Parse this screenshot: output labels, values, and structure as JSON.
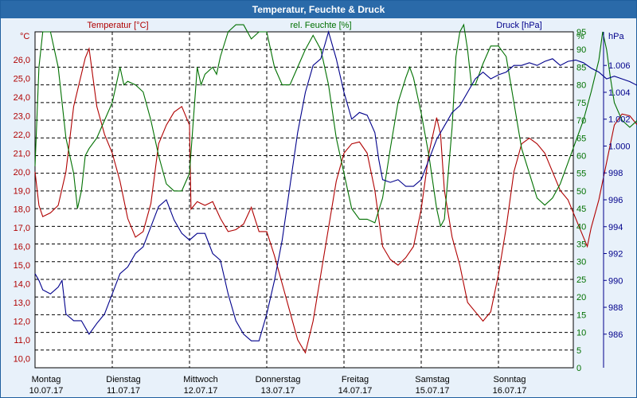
{
  "window": {
    "title": "Temperatur, Feuchte & Druck"
  },
  "chart_data": {
    "type": "line",
    "title": "Temperatur, Feuchte & Druck",
    "x_categories": [
      {
        "day": "Montag",
        "date": "10.07.17"
      },
      {
        "day": "Dienstag",
        "date": "11.07.17"
      },
      {
        "day": "Mittwoch",
        "date": "12.07.17"
      },
      {
        "day": "Donnerstag",
        "date": "13.07.17"
      },
      {
        "day": "Freitag",
        "date": "14.07.17"
      },
      {
        "day": "Samstag",
        "date": "15.07.17"
      },
      {
        "day": "Sonntag",
        "date": "16.07.17"
      }
    ],
    "x_range_days": [
      0,
      7
    ],
    "grid": true,
    "axes": {
      "temperature": {
        "label": "Temperatur [°C]",
        "unit": "°C",
        "range": [
          9.5,
          27.5
        ],
        "ticks": [
          "10,0",
          "11,0",
          "12,0",
          "13,0",
          "14,0",
          "15,0",
          "16,0",
          "17,0",
          "18,0",
          "19,0",
          "20,0",
          "21,0",
          "22,0",
          "23,0",
          "24,0",
          "25,0",
          "26,0"
        ],
        "color": "#b00000"
      },
      "humidity": {
        "label": "rel. Feuchte [%]",
        "unit": "%",
        "range": [
          0,
          95
        ],
        "ticks": [
          "0",
          "5",
          "10",
          "15",
          "20",
          "25",
          "30",
          "35",
          "40",
          "45",
          "50",
          "55",
          "60",
          "65",
          "70",
          "75",
          "80",
          "85",
          "90",
          "95"
        ],
        "color": "#007000"
      },
      "pressure": {
        "label": "Druck [hPa]",
        "unit": "hPa",
        "range": [
          983.5,
          1008.5
        ],
        "ticks": [
          "986",
          "988",
          "990",
          "992",
          "994",
          "996",
          "998",
          "1.000",
          "1.002",
          "1.004",
          "1.006"
        ],
        "color": "#00008b"
      }
    },
    "series": [
      {
        "name": "Temperatur [°C]",
        "axis": "temperature",
        "color": "#b00000",
        "points": [
          [
            0,
            20.0
          ],
          [
            0.05,
            18.2
          ],
          [
            0.1,
            17.6
          ],
          [
            0.2,
            17.8
          ],
          [
            0.3,
            18.2
          ],
          [
            0.4,
            20.0
          ],
          [
            0.5,
            23.5
          ],
          [
            0.65,
            26.1
          ],
          [
            0.7,
            26.6
          ],
          [
            0.8,
            23.5
          ],
          [
            0.9,
            22.0
          ],
          [
            1.0,
            21.0
          ],
          [
            1.1,
            19.5
          ],
          [
            1.2,
            17.5
          ],
          [
            1.3,
            16.5
          ],
          [
            1.4,
            16.8
          ],
          [
            1.5,
            18.3
          ],
          [
            1.6,
            21.5
          ],
          [
            1.7,
            22.5
          ],
          [
            1.8,
            23.2
          ],
          [
            1.9,
            23.5
          ],
          [
            2.0,
            22.5
          ],
          [
            2.02,
            18.0
          ],
          [
            2.1,
            18.4
          ],
          [
            2.2,
            18.2
          ],
          [
            2.3,
            18.4
          ],
          [
            2.4,
            17.5
          ],
          [
            2.5,
            16.8
          ],
          [
            2.6,
            16.9
          ],
          [
            2.7,
            17.2
          ],
          [
            2.8,
            18.1
          ],
          [
            2.9,
            16.8
          ],
          [
            3.0,
            16.8
          ],
          [
            3.1,
            15.5
          ],
          [
            3.2,
            14.0
          ],
          [
            3.3,
            12.5
          ],
          [
            3.4,
            11.0
          ],
          [
            3.5,
            10.3
          ],
          [
            3.6,
            12.0
          ],
          [
            3.7,
            14.5
          ],
          [
            3.8,
            17.0
          ],
          [
            3.9,
            19.5
          ],
          [
            4.0,
            21.0
          ],
          [
            4.1,
            21.5
          ],
          [
            4.2,
            21.6
          ],
          [
            4.3,
            21.0
          ],
          [
            4.4,
            19.0
          ],
          [
            4.5,
            16.0
          ],
          [
            4.6,
            15.3
          ],
          [
            4.7,
            15.0
          ],
          [
            4.8,
            15.4
          ],
          [
            4.9,
            16.0
          ],
          [
            5.0,
            18.0
          ],
          [
            5.1,
            21.0
          ],
          [
            5.2,
            22.9
          ],
          [
            5.25,
            22.0
          ],
          [
            5.3,
            19.0
          ],
          [
            5.4,
            16.5
          ],
          [
            5.5,
            15.0
          ],
          [
            5.6,
            13.0
          ],
          [
            5.7,
            12.5
          ],
          [
            5.8,
            12.0
          ],
          [
            5.9,
            12.5
          ],
          [
            6.0,
            14.5
          ],
          [
            6.1,
            17.0
          ],
          [
            6.2,
            20.0
          ],
          [
            6.3,
            21.5
          ],
          [
            6.4,
            21.8
          ],
          [
            6.5,
            21.5
          ],
          [
            6.6,
            21.0
          ],
          [
            6.7,
            20.0
          ],
          [
            6.8,
            19.0
          ],
          [
            6.9,
            18.5
          ],
          [
            7.0,
            17.5
          ],
          [
            7.1,
            16.5
          ],
          [
            7.15,
            16.0
          ],
          [
            7.2,
            17.0
          ],
          [
            7.3,
            18.5
          ],
          [
            7.4,
            20.5
          ],
          [
            7.5,
            22.5
          ],
          [
            7.6,
            23.1
          ],
          [
            7.7,
            23.0
          ],
          [
            7.8,
            22.5
          ],
          [
            7.9,
            21.5
          ],
          [
            8.0,
            20.0
          ],
          [
            8.06,
            19.3
          ]
        ]
      },
      {
        "name": "rel. Feuchte [%]",
        "axis": "humidity",
        "color": "#007000",
        "points": [
          [
            0,
            57
          ],
          [
            0.05,
            85
          ],
          [
            0.1,
            95
          ],
          [
            0.2,
            95
          ],
          [
            0.3,
            85
          ],
          [
            0.4,
            65
          ],
          [
            0.5,
            55
          ],
          [
            0.55,
            45
          ],
          [
            0.6,
            50
          ],
          [
            0.65,
            60
          ],
          [
            0.7,
            62
          ],
          [
            0.8,
            65
          ],
          [
            0.9,
            70
          ],
          [
            1.0,
            75
          ],
          [
            1.05,
            80
          ],
          [
            1.1,
            85
          ],
          [
            1.15,
            80
          ],
          [
            1.2,
            81
          ],
          [
            1.3,
            80
          ],
          [
            1.4,
            78
          ],
          [
            1.5,
            70
          ],
          [
            1.6,
            60
          ],
          [
            1.7,
            52
          ],
          [
            1.8,
            50
          ],
          [
            1.9,
            50
          ],
          [
            2.0,
            55
          ],
          [
            2.05,
            70
          ],
          [
            2.1,
            85
          ],
          [
            2.15,
            80
          ],
          [
            2.2,
            83
          ],
          [
            2.3,
            85
          ],
          [
            2.35,
            83
          ],
          [
            2.4,
            88
          ],
          [
            2.5,
            95
          ],
          [
            2.6,
            97
          ],
          [
            2.7,
            97
          ],
          [
            2.8,
            93
          ],
          [
            2.9,
            95
          ],
          [
            3.0,
            95
          ],
          [
            3.1,
            85
          ],
          [
            3.2,
            80
          ],
          [
            3.3,
            80
          ],
          [
            3.4,
            85
          ],
          [
            3.5,
            90
          ],
          [
            3.6,
            94
          ],
          [
            3.7,
            90
          ],
          [
            3.8,
            80
          ],
          [
            3.9,
            65
          ],
          [
            4.0,
            55
          ],
          [
            4.1,
            45
          ],
          [
            4.2,
            42
          ],
          [
            4.3,
            42
          ],
          [
            4.4,
            41
          ],
          [
            4.5,
            48
          ],
          [
            4.6,
            62
          ],
          [
            4.7,
            75
          ],
          [
            4.8,
            82
          ],
          [
            4.85,
            85
          ],
          [
            4.9,
            82
          ],
          [
            5.0,
            72
          ],
          [
            5.1,
            60
          ],
          [
            5.2,
            45
          ],
          [
            5.25,
            40
          ],
          [
            5.3,
            42
          ],
          [
            5.4,
            68
          ],
          [
            5.45,
            88
          ],
          [
            5.5,
            95
          ],
          [
            5.55,
            97
          ],
          [
            5.6,
            90
          ],
          [
            5.65,
            80
          ],
          [
            5.7,
            80
          ],
          [
            5.8,
            86
          ],
          [
            5.9,
            91
          ],
          [
            6.0,
            91
          ],
          [
            6.1,
            88
          ],
          [
            6.2,
            75
          ],
          [
            6.3,
            62
          ],
          [
            6.4,
            55
          ],
          [
            6.5,
            48
          ],
          [
            6.6,
            46
          ],
          [
            6.7,
            48
          ],
          [
            6.8,
            52
          ],
          [
            6.9,
            58
          ],
          [
            7.0,
            64
          ],
          [
            7.1,
            70
          ],
          [
            7.2,
            78
          ],
          [
            7.3,
            87
          ],
          [
            7.35,
            95
          ],
          [
            7.4,
            90
          ],
          [
            7.45,
            82
          ],
          [
            7.5,
            75
          ],
          [
            7.6,
            70
          ],
          [
            7.7,
            68
          ],
          [
            7.8,
            70
          ],
          [
            7.9,
            76
          ],
          [
            8.0,
            83
          ],
          [
            8.06,
            88
          ]
        ]
      },
      {
        "name": "Druck [hPa]",
        "axis": "pressure",
        "color": "#00008b",
        "points": [
          [
            0,
            990.5
          ],
          [
            0.05,
            990.0
          ],
          [
            0.1,
            989.3
          ],
          [
            0.2,
            989.0
          ],
          [
            0.3,
            989.5
          ],
          [
            0.35,
            990.0
          ],
          [
            0.4,
            987.5
          ],
          [
            0.5,
            987.0
          ],
          [
            0.6,
            987.0
          ],
          [
            0.7,
            986.0
          ],
          [
            0.8,
            986.8
          ],
          [
            0.9,
            987.5
          ],
          [
            1.0,
            989.0
          ],
          [
            1.1,
            990.5
          ],
          [
            1.2,
            991.0
          ],
          [
            1.3,
            992.0
          ],
          [
            1.4,
            992.5
          ],
          [
            1.5,
            994.0
          ],
          [
            1.6,
            995.5
          ],
          [
            1.7,
            996.0
          ],
          [
            1.8,
            994.5
          ],
          [
            1.9,
            993.5
          ],
          [
            2.0,
            993.0
          ],
          [
            2.1,
            993.5
          ],
          [
            2.2,
            993.5
          ],
          [
            2.3,
            992.0
          ],
          [
            2.4,
            991.5
          ],
          [
            2.5,
            989.0
          ],
          [
            2.6,
            987.0
          ],
          [
            2.7,
            986.0
          ],
          [
            2.8,
            985.5
          ],
          [
            2.9,
            985.5
          ],
          [
            3.0,
            987.5
          ],
          [
            3.1,
            990.0
          ],
          [
            3.2,
            993.0
          ],
          [
            3.3,
            997.0
          ],
          [
            3.4,
            1001.0
          ],
          [
            3.5,
            1004.0
          ],
          [
            3.6,
            1006.0
          ],
          [
            3.7,
            1006.5
          ],
          [
            3.8,
            1008.5
          ],
          [
            3.9,
            1006.5
          ],
          [
            4.0,
            1004.0
          ],
          [
            4.1,
            1002.0
          ],
          [
            4.2,
            1002.5
          ],
          [
            4.3,
            1002.3
          ],
          [
            4.4,
            1001.0
          ],
          [
            4.45,
            999.0
          ],
          [
            4.5,
            997.5
          ],
          [
            4.6,
            997.3
          ],
          [
            4.7,
            997.5
          ],
          [
            4.8,
            997.0
          ],
          [
            4.9,
            997.0
          ],
          [
            5.0,
            997.5
          ],
          [
            5.1,
            999.0
          ],
          [
            5.2,
            1000.5
          ],
          [
            5.3,
            1001.5
          ],
          [
            5.4,
            1002.5
          ],
          [
            5.5,
            1003.0
          ],
          [
            5.6,
            1004.0
          ],
          [
            5.7,
            1005.0
          ],
          [
            5.8,
            1005.5
          ],
          [
            5.9,
            1005.0
          ],
          [
            6.0,
            1005.3
          ],
          [
            6.1,
            1005.5
          ],
          [
            6.2,
            1006.0
          ],
          [
            6.3,
            1006.0
          ],
          [
            6.4,
            1006.2
          ],
          [
            6.5,
            1006.0
          ],
          [
            6.6,
            1006.3
          ],
          [
            6.7,
            1006.5
          ],
          [
            6.8,
            1006.0
          ],
          [
            6.9,
            1006.3
          ],
          [
            7.0,
            1006.4
          ],
          [
            7.1,
            1006.2
          ],
          [
            7.2,
            1005.8
          ],
          [
            7.3,
            1005.5
          ],
          [
            7.4,
            1005.0
          ],
          [
            7.5,
            1005.2
          ],
          [
            7.6,
            1005.0
          ],
          [
            7.7,
            1004.8
          ],
          [
            7.8,
            1004.5
          ],
          [
            7.9,
            1004.5
          ],
          [
            8.0,
            1005.0
          ],
          [
            8.06,
            1005.3
          ]
        ]
      }
    ]
  }
}
